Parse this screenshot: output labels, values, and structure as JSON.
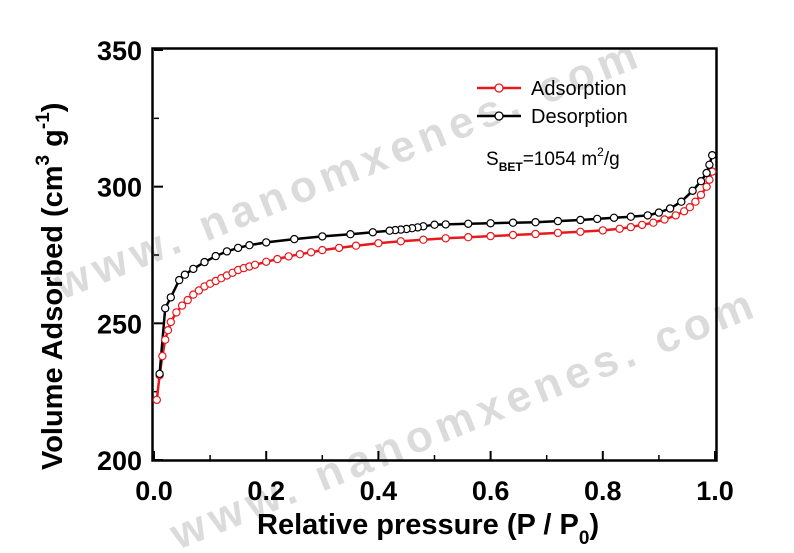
{
  "watermark": "www. nanomxenes. com",
  "chart_data": {
    "type": "line",
    "xlabel": "Relative pressure (P / P",
    "xlabel_sub": "0",
    "xlabel_end": ")",
    "ylabel": "Volume Adsorbed (cm",
    "ylabel_sup1": "3",
    "ylabel_mid": " g",
    "ylabel_sup2": "-1",
    "ylabel_end": ")",
    "xlim": [
      0.0,
      1.0
    ],
    "ylim": [
      200,
      350
    ],
    "x_ticks": [
      "0.0",
      "0.2",
      "0.4",
      "0.6",
      "0.8",
      "1.0"
    ],
    "x_tick_values": [
      0.0,
      0.2,
      0.4,
      0.6,
      0.8,
      1.0
    ],
    "y_ticks": [
      "200",
      "250",
      "300",
      "350"
    ],
    "y_tick_values": [
      200,
      250,
      300,
      350
    ],
    "legend_position": "top-right",
    "annotation": {
      "prefix": "S",
      "sub": "BET",
      "text": "=1054 m",
      "sup": "2",
      "suffix": "/g"
    },
    "series": [
      {
        "name": "Adsorption",
        "color": "#e8191c",
        "marker": "open-circle",
        "x": [
          0.005,
          0.01,
          0.015,
          0.02,
          0.025,
          0.03,
          0.04,
          0.05,
          0.06,
          0.07,
          0.08,
          0.09,
          0.1,
          0.11,
          0.12,
          0.13,
          0.14,
          0.15,
          0.16,
          0.17,
          0.18,
          0.2,
          0.22,
          0.24,
          0.26,
          0.28,
          0.3,
          0.33,
          0.36,
          0.4,
          0.44,
          0.48,
          0.52,
          0.56,
          0.6,
          0.64,
          0.68,
          0.72,
          0.76,
          0.8,
          0.83,
          0.85,
          0.87,
          0.89,
          0.91,
          0.93,
          0.945,
          0.955,
          0.965,
          0.975,
          0.985,
          0.99,
          0.995
        ],
        "y": [
          222,
          231,
          238,
          244,
          247.5,
          250.5,
          254,
          256.5,
          258.5,
          260.5,
          262,
          263.5,
          264.5,
          265.5,
          266.5,
          267.5,
          268.5,
          269.5,
          270.2,
          270.8,
          271.4,
          272.5,
          273.5,
          274.5,
          275.3,
          276,
          276.8,
          277.6,
          278.4,
          279.3,
          280,
          280.6,
          281.1,
          281.5,
          281.9,
          282.3,
          282.7,
          283.1,
          283.5,
          284,
          284.6,
          285.2,
          286,
          286.8,
          288,
          289.5,
          291,
          292.5,
          294.5,
          297,
          300,
          302.5,
          305.5
        ]
      },
      {
        "name": "Desorption",
        "color": "#000000",
        "marker": "open-circle",
        "x": [
          0.995,
          0.99,
          0.985,
          0.975,
          0.96,
          0.94,
          0.92,
          0.9,
          0.88,
          0.85,
          0.82,
          0.79,
          0.76,
          0.72,
          0.68,
          0.64,
          0.6,
          0.56,
          0.52,
          0.5,
          0.48,
          0.47,
          0.46,
          0.45,
          0.44,
          0.43,
          0.42,
          0.39,
          0.35,
          0.3,
          0.25,
          0.2,
          0.17,
          0.15,
          0.13,
          0.11,
          0.09,
          0.07,
          0.055,
          0.045,
          0.03,
          0.02,
          0.01
        ],
        "y": [
          311.5,
          308,
          305,
          302,
          298.5,
          294.5,
          292,
          290.5,
          289.5,
          289,
          288.6,
          288.2,
          287.8,
          287.4,
          287,
          286.8,
          286.6,
          286.4,
          286.2,
          286.1,
          285.5,
          285.1,
          284.8,
          284.5,
          284.3,
          284.1,
          283.9,
          283.3,
          282.6,
          281.8,
          280.8,
          279.6,
          278.6,
          277.6,
          276.3,
          274.6,
          272.4,
          269.9,
          267.8,
          265.8,
          259.5,
          255.5,
          231.5
        ]
      }
    ]
  }
}
